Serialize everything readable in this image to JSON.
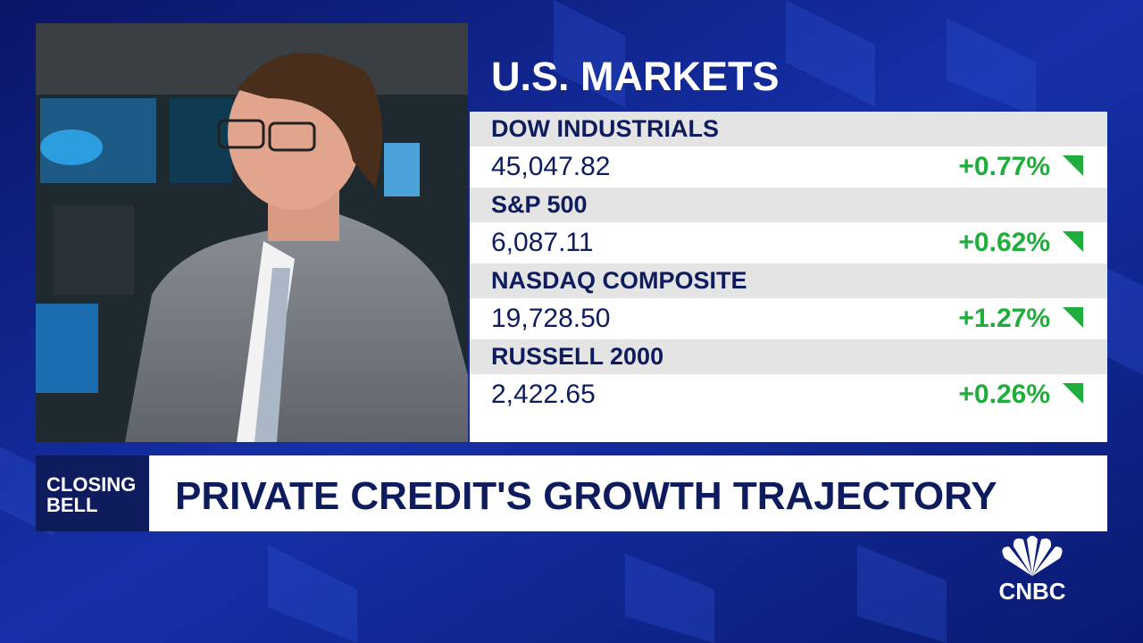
{
  "markets": {
    "title": "U.S. MARKETS",
    "rows": [
      {
        "name": "DOW INDUSTRIALS",
        "value": "45,047.82",
        "change": "+0.77%"
      },
      {
        "name": "S&P 500",
        "value": "6,087.11",
        "change": "+0.62%"
      },
      {
        "name": "NASDAQ COMPOSITE",
        "value": "19,728.50",
        "change": "+1.27%"
      },
      {
        "name": "RUSSELL 2000",
        "value": "2,422.65",
        "change": "+0.26%"
      }
    ]
  },
  "banner": {
    "show": [
      "CLOSING",
      "BELL"
    ],
    "headline": "PRIVATE CREDIT'S GROWTH TRAJECTORY"
  },
  "logo": {
    "text": "CNBC"
  }
}
